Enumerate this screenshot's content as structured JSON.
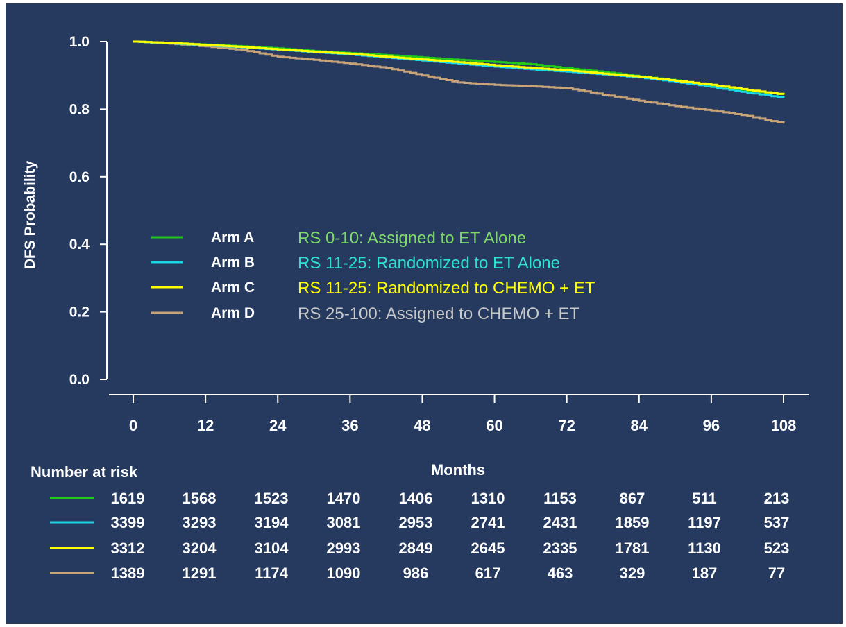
{
  "chart_data": {
    "type": "line",
    "xlabel": "Months",
    "ylabel": "DFS Probability",
    "xlim": [
      0,
      108
    ],
    "ylim": [
      0.0,
      1.0
    ],
    "x_ticks": [
      "0",
      "12",
      "24",
      "36",
      "48",
      "60",
      "72",
      "84",
      "96",
      "108"
    ],
    "y_ticks": [
      "0.0",
      "0.2",
      "0.4",
      "0.6",
      "0.8",
      "1.0"
    ],
    "series": [
      {
        "name": "Arm A",
        "description": "RS 0-10: Assigned to ET Alone",
        "color": "#22c81a",
        "label_color": "#7ed86a",
        "x": [
          0,
          6,
          12,
          18,
          24,
          30,
          36,
          42,
          48,
          54,
          60,
          66,
          72,
          78,
          84,
          90,
          96,
          102,
          108
        ],
        "y": [
          1.0,
          0.996,
          0.991,
          0.986,
          0.98,
          0.972,
          0.966,
          0.96,
          0.953,
          0.946,
          0.94,
          0.933,
          0.921,
          0.91,
          0.897,
          0.885,
          0.871,
          0.855,
          0.843
        ]
      },
      {
        "name": "Arm B",
        "description": "RS 11-25: Randomized to ET Alone",
        "color": "#1ad6e6",
        "label_color": "#30e0d0",
        "x": [
          0,
          6,
          12,
          18,
          24,
          30,
          36,
          42,
          48,
          54,
          60,
          66,
          72,
          78,
          84,
          90,
          96,
          102,
          108
        ],
        "y": [
          1.0,
          0.995,
          0.989,
          0.983,
          0.976,
          0.969,
          0.962,
          0.953,
          0.944,
          0.935,
          0.926,
          0.918,
          0.911,
          0.903,
          0.894,
          0.881,
          0.866,
          0.849,
          0.833
        ]
      },
      {
        "name": "Arm C",
        "description": "RS 11-25: Randomized to CHEMO + ET",
        "color": "#ffff00",
        "label_color": "#ffff00",
        "x": [
          0,
          6,
          12,
          18,
          24,
          30,
          36,
          42,
          48,
          54,
          60,
          66,
          72,
          78,
          84,
          90,
          96,
          102,
          108
        ],
        "y": [
          1.0,
          0.996,
          0.99,
          0.984,
          0.977,
          0.97,
          0.964,
          0.955,
          0.947,
          0.939,
          0.93,
          0.922,
          0.915,
          0.905,
          0.896,
          0.884,
          0.872,
          0.857,
          0.843
        ]
      },
      {
        "name": "Arm D",
        "description": "RS 25-100: Assigned to CHEMO + ET",
        "color": "#c8a478",
        "label_color": "#c8c8c8",
        "x": [
          0,
          6,
          12,
          18,
          24,
          30,
          36,
          42,
          48,
          54,
          60,
          66,
          72,
          78,
          84,
          90,
          96,
          102,
          108
        ],
        "y": [
          1.0,
          0.994,
          0.986,
          0.975,
          0.955,
          0.946,
          0.935,
          0.922,
          0.9,
          0.879,
          0.872,
          0.868,
          0.862,
          0.843,
          0.825,
          0.809,
          0.796,
          0.78,
          0.757
        ]
      }
    ],
    "legend_placement": "center-left",
    "risk_table": {
      "title": "Number at risk",
      "rows": [
        [
          "1619",
          "1568",
          "1523",
          "1470",
          "1406",
          "1310",
          "1153",
          "867",
          "511",
          "213"
        ],
        [
          "3399",
          "3293",
          "3194",
          "3081",
          "2953",
          "2741",
          "2431",
          "1859",
          "1197",
          "537"
        ],
        [
          "3312",
          "3204",
          "3104",
          "2993",
          "2849",
          "2645",
          "2335",
          "1781",
          "1130",
          "523"
        ],
        [
          "1389",
          "1291",
          "1174",
          "1090",
          "986",
          "617",
          "463",
          "329",
          "187",
          "77"
        ]
      ]
    }
  },
  "colors": {
    "background": "#253a5e",
    "axis": "#ffffff",
    "text": "#ffffff"
  }
}
